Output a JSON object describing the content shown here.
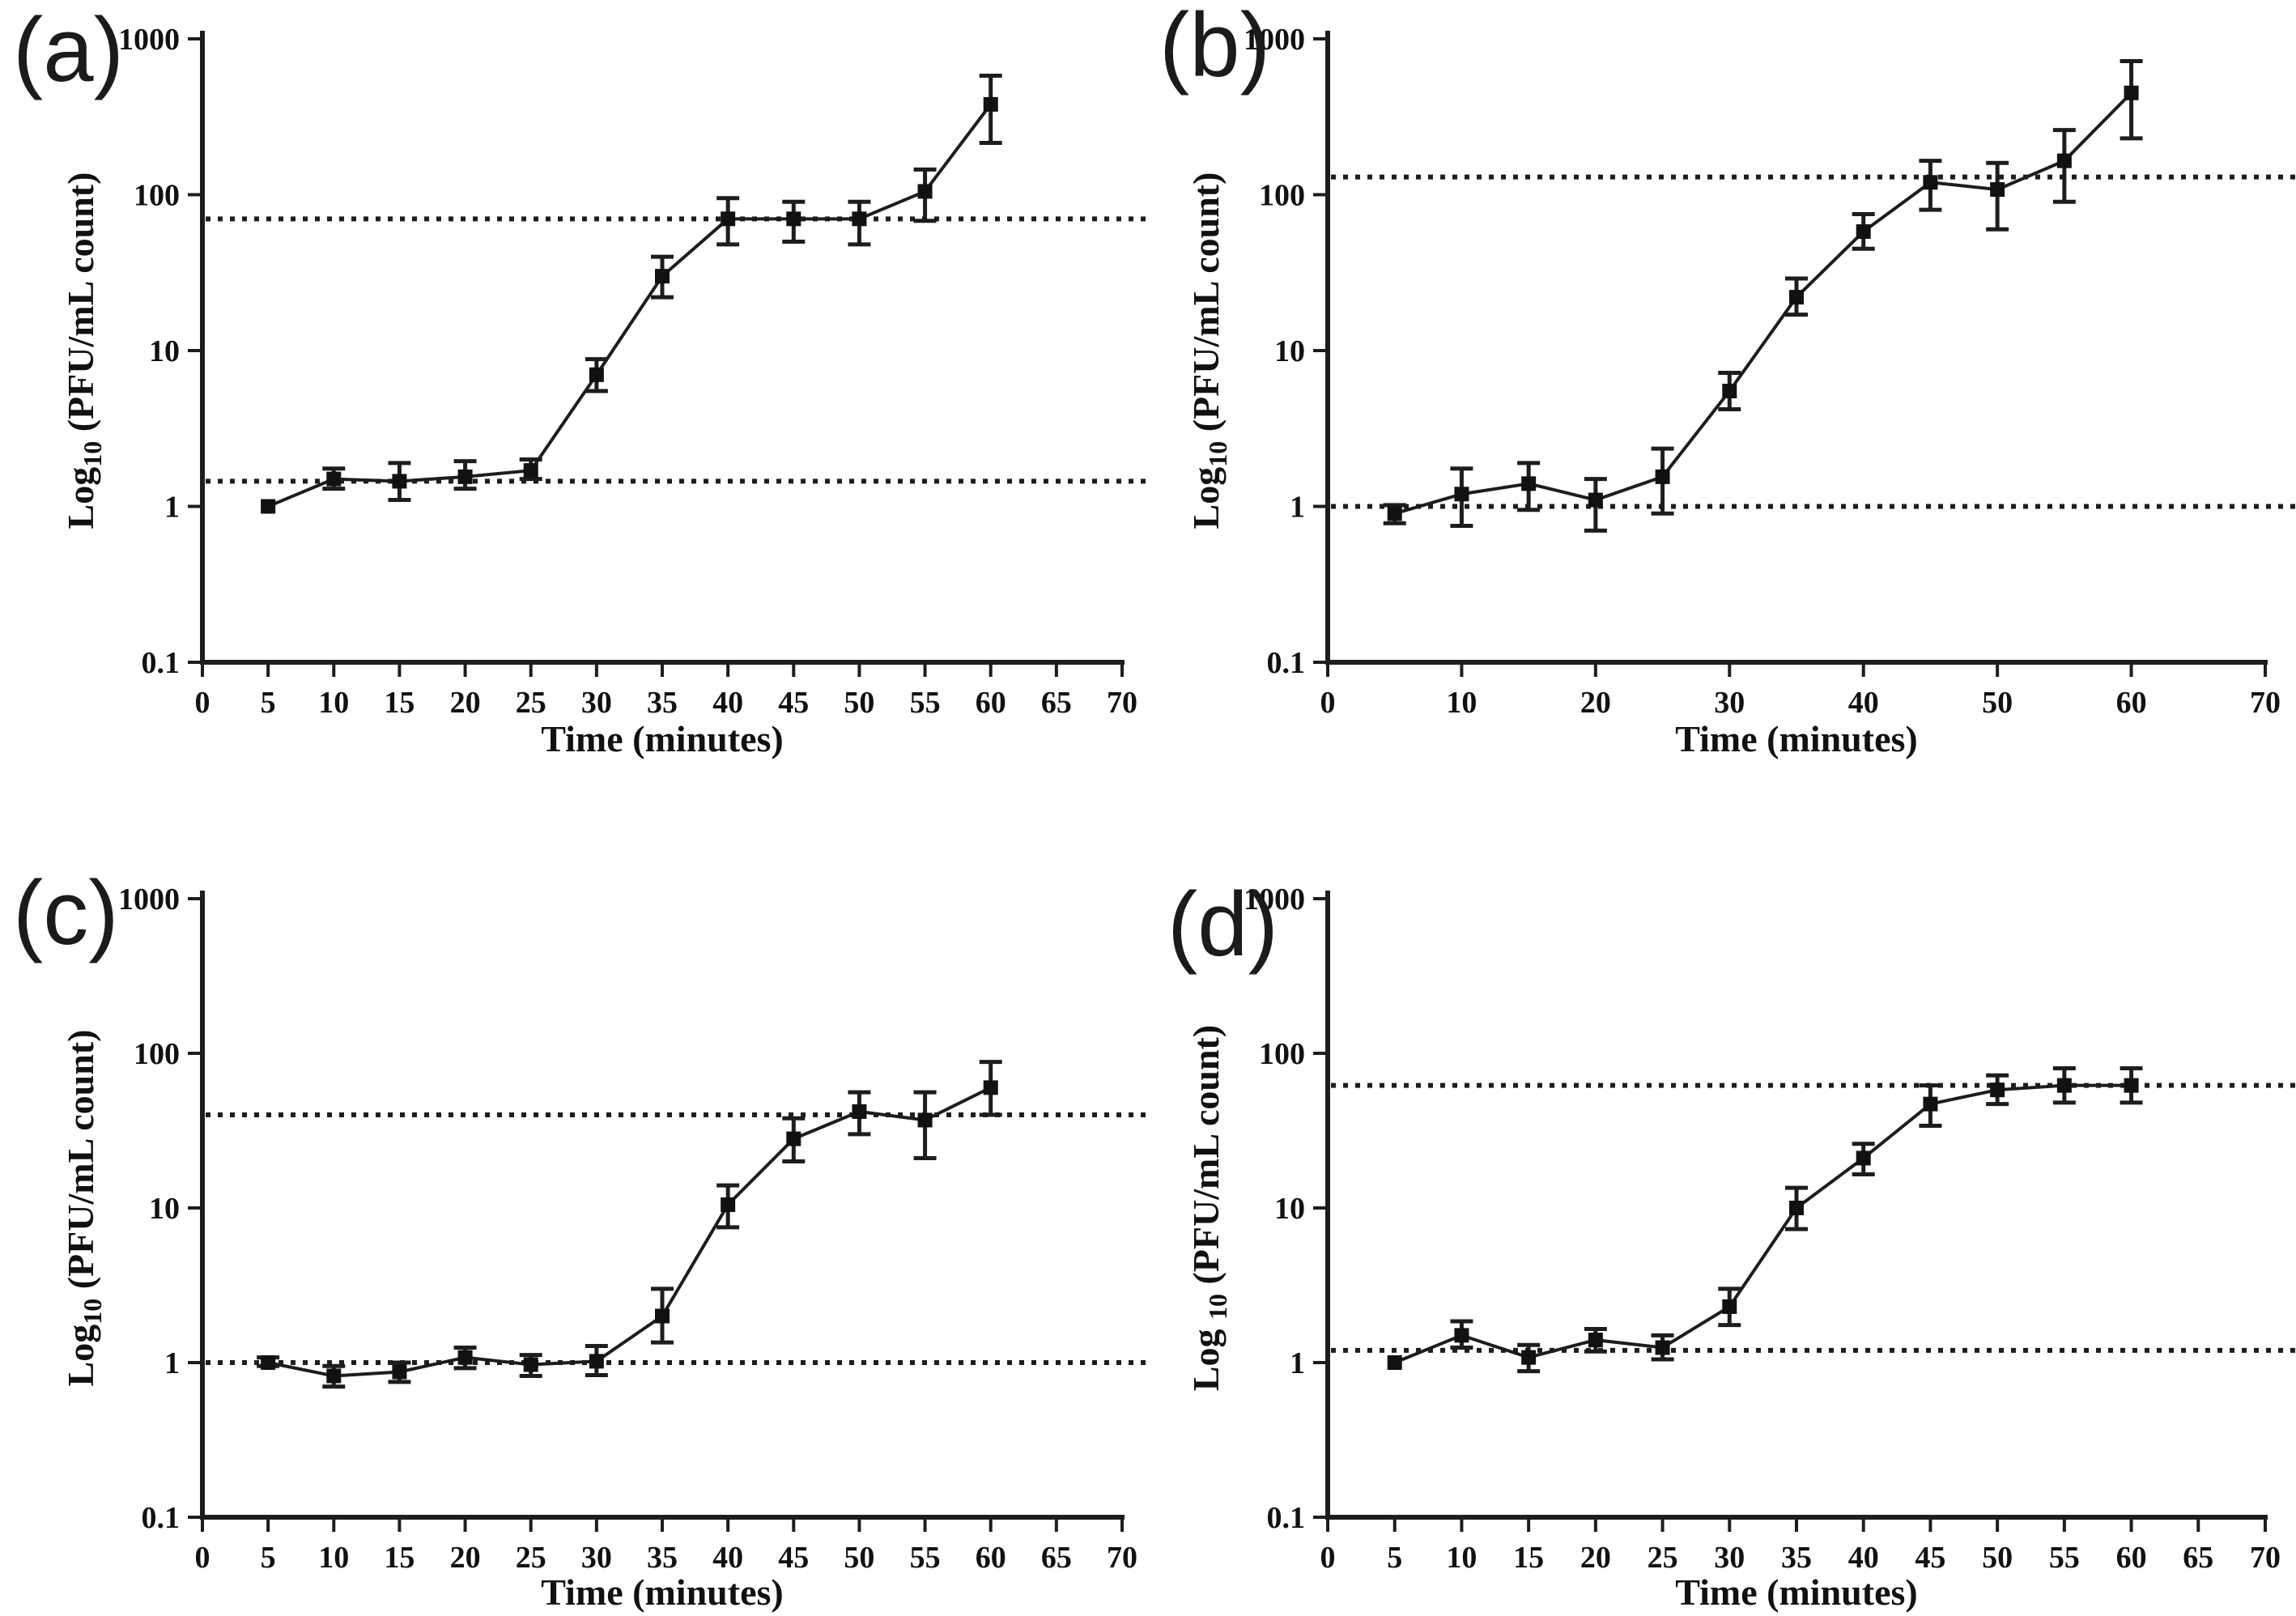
{
  "figure": {
    "background": "#ffffff",
    "line_color": "#1d1d1d",
    "marker_color": "#111111"
  },
  "chart_data": [
    {
      "panel_label": "(a)",
      "type": "line",
      "xlabel": "Time (minutes)",
      "ylabel_prefix": "Log",
      "ylabel_sub": "10",
      "ylabel_suffix": " (PFU/mL count)",
      "xlim": [
        0,
        70
      ],
      "ylim": [
        0.1,
        1000
      ],
      "y_scale": "log",
      "grid": false,
      "x_tick_step": 5,
      "x_tick_labels": [
        "0",
        "5",
        "10",
        "15",
        "20",
        "25",
        "30",
        "35",
        "40",
        "45",
        "50",
        "55",
        "60",
        "65",
        "70"
      ],
      "y_tick_labels": [
        "0.1",
        "1",
        "10",
        "100",
        "1000"
      ],
      "x": [
        5,
        10,
        15,
        20,
        25,
        30,
        35,
        40,
        45,
        50,
        55,
        60
      ],
      "y": [
        1.0,
        1.5,
        1.45,
        1.55,
        1.7,
        7,
        30,
        70,
        70,
        70,
        105,
        380
      ],
      "err_low": [
        1.0,
        1.3,
        1.1,
        1.3,
        1.5,
        5.5,
        22,
        48,
        50,
        48,
        68,
        215
      ],
      "err_high": [
        1.0,
        1.75,
        1.9,
        1.95,
        2.0,
        8.8,
        40,
        95,
        90,
        90,
        145,
        580
      ],
      "ref_lines": [
        70,
        1.45
      ]
    },
    {
      "panel_label": "(b)",
      "type": "line",
      "xlabel": "Time (minutes)",
      "ylabel_prefix": "Log",
      "ylabel_sub": "10",
      "ylabel_suffix": " (PFU/mL count)",
      "xlim": [
        0,
        70
      ],
      "ylim": [
        0.1,
        1000
      ],
      "y_scale": "log",
      "grid": false,
      "x_tick_step": 10,
      "x_tick_labels": [
        "0",
        "10",
        "20",
        "30",
        "40",
        "50",
        "60",
        "70"
      ],
      "y_tick_labels": [
        "0.1",
        "1",
        "10",
        "100",
        "1000"
      ],
      "x": [
        5,
        10,
        15,
        20,
        25,
        30,
        35,
        40,
        45,
        50,
        55,
        60
      ],
      "y": [
        0.9,
        1.2,
        1.4,
        1.1,
        1.55,
        5.5,
        22,
        58,
        120,
        108,
        165,
        450
      ],
      "err_low": [
        0.78,
        0.75,
        0.95,
        0.7,
        0.9,
        4.2,
        17,
        45,
        80,
        60,
        90,
        230
      ],
      "err_high": [
        1.02,
        1.75,
        1.9,
        1.5,
        2.35,
        7.2,
        29,
        75,
        165,
        160,
        260,
        720
      ],
      "ref_lines": [
        130,
        1.0
      ]
    },
    {
      "panel_label": "(c)",
      "type": "line",
      "xlabel": "Time (minutes)",
      "ylabel_prefix": "Log",
      "ylabel_sub": "10",
      "ylabel_suffix": " (PFU/mL count)",
      "xlim": [
        0,
        70
      ],
      "ylim": [
        0.1,
        1000
      ],
      "y_scale": "log",
      "grid": false,
      "x_tick_step": 5,
      "x_tick_labels": [
        "0",
        "5",
        "10",
        "15",
        "20",
        "25",
        "30",
        "35",
        "40",
        "45",
        "50",
        "55",
        "60",
        "65",
        "70"
      ],
      "y_tick_labels": [
        "0.1",
        "1",
        "10",
        "100",
        "1000"
      ],
      "x": [
        5,
        10,
        15,
        20,
        25,
        30,
        35,
        40,
        45,
        50,
        55,
        60
      ],
      "y": [
        1.0,
        0.82,
        0.87,
        1.08,
        0.97,
        1.02,
        2.0,
        10.5,
        28,
        42,
        37,
        60
      ],
      "err_low": [
        0.95,
        0.7,
        0.75,
        0.92,
        0.82,
        0.83,
        1.35,
        7.5,
        20,
        30,
        21,
        40
      ],
      "err_high": [
        1.08,
        0.95,
        1.0,
        1.25,
        1.12,
        1.28,
        3.0,
        14,
        38,
        56,
        56,
        88
      ],
      "ref_lines": [
        40,
        1.0
      ]
    },
    {
      "panel_label": "(d)",
      "type": "line",
      "xlabel": "Time (minutes)",
      "ylabel_prefix": "Log ",
      "ylabel_sub": "10",
      "ylabel_suffix": " (PFU/mL count)",
      "xlim": [
        0,
        70
      ],
      "ylim": [
        0.1,
        1000
      ],
      "y_scale": "log",
      "grid": false,
      "x_tick_step": 5,
      "x_tick_labels": [
        "0",
        "5",
        "10",
        "15",
        "20",
        "25",
        "30",
        "35",
        "40",
        "45",
        "50",
        "55",
        "60",
        "65",
        "70"
      ],
      "y_tick_labels": [
        "0.1",
        "1",
        "10",
        "100",
        "1000"
      ],
      "x": [
        5,
        10,
        15,
        20,
        25,
        30,
        35,
        40,
        45,
        50,
        55,
        60
      ],
      "y": [
        1.0,
        1.5,
        1.08,
        1.4,
        1.25,
        2.3,
        10,
        21,
        47,
        58,
        62,
        62
      ],
      "err_low": [
        1.0,
        1.25,
        0.88,
        1.18,
        1.05,
        1.75,
        7.3,
        16.5,
        34,
        47,
        48,
        48
      ],
      "err_high": [
        1.0,
        1.85,
        1.3,
        1.65,
        1.5,
        3.0,
        13.5,
        26,
        62,
        72,
        80,
        80
      ],
      "ref_lines": [
        62,
        1.2
      ]
    }
  ]
}
